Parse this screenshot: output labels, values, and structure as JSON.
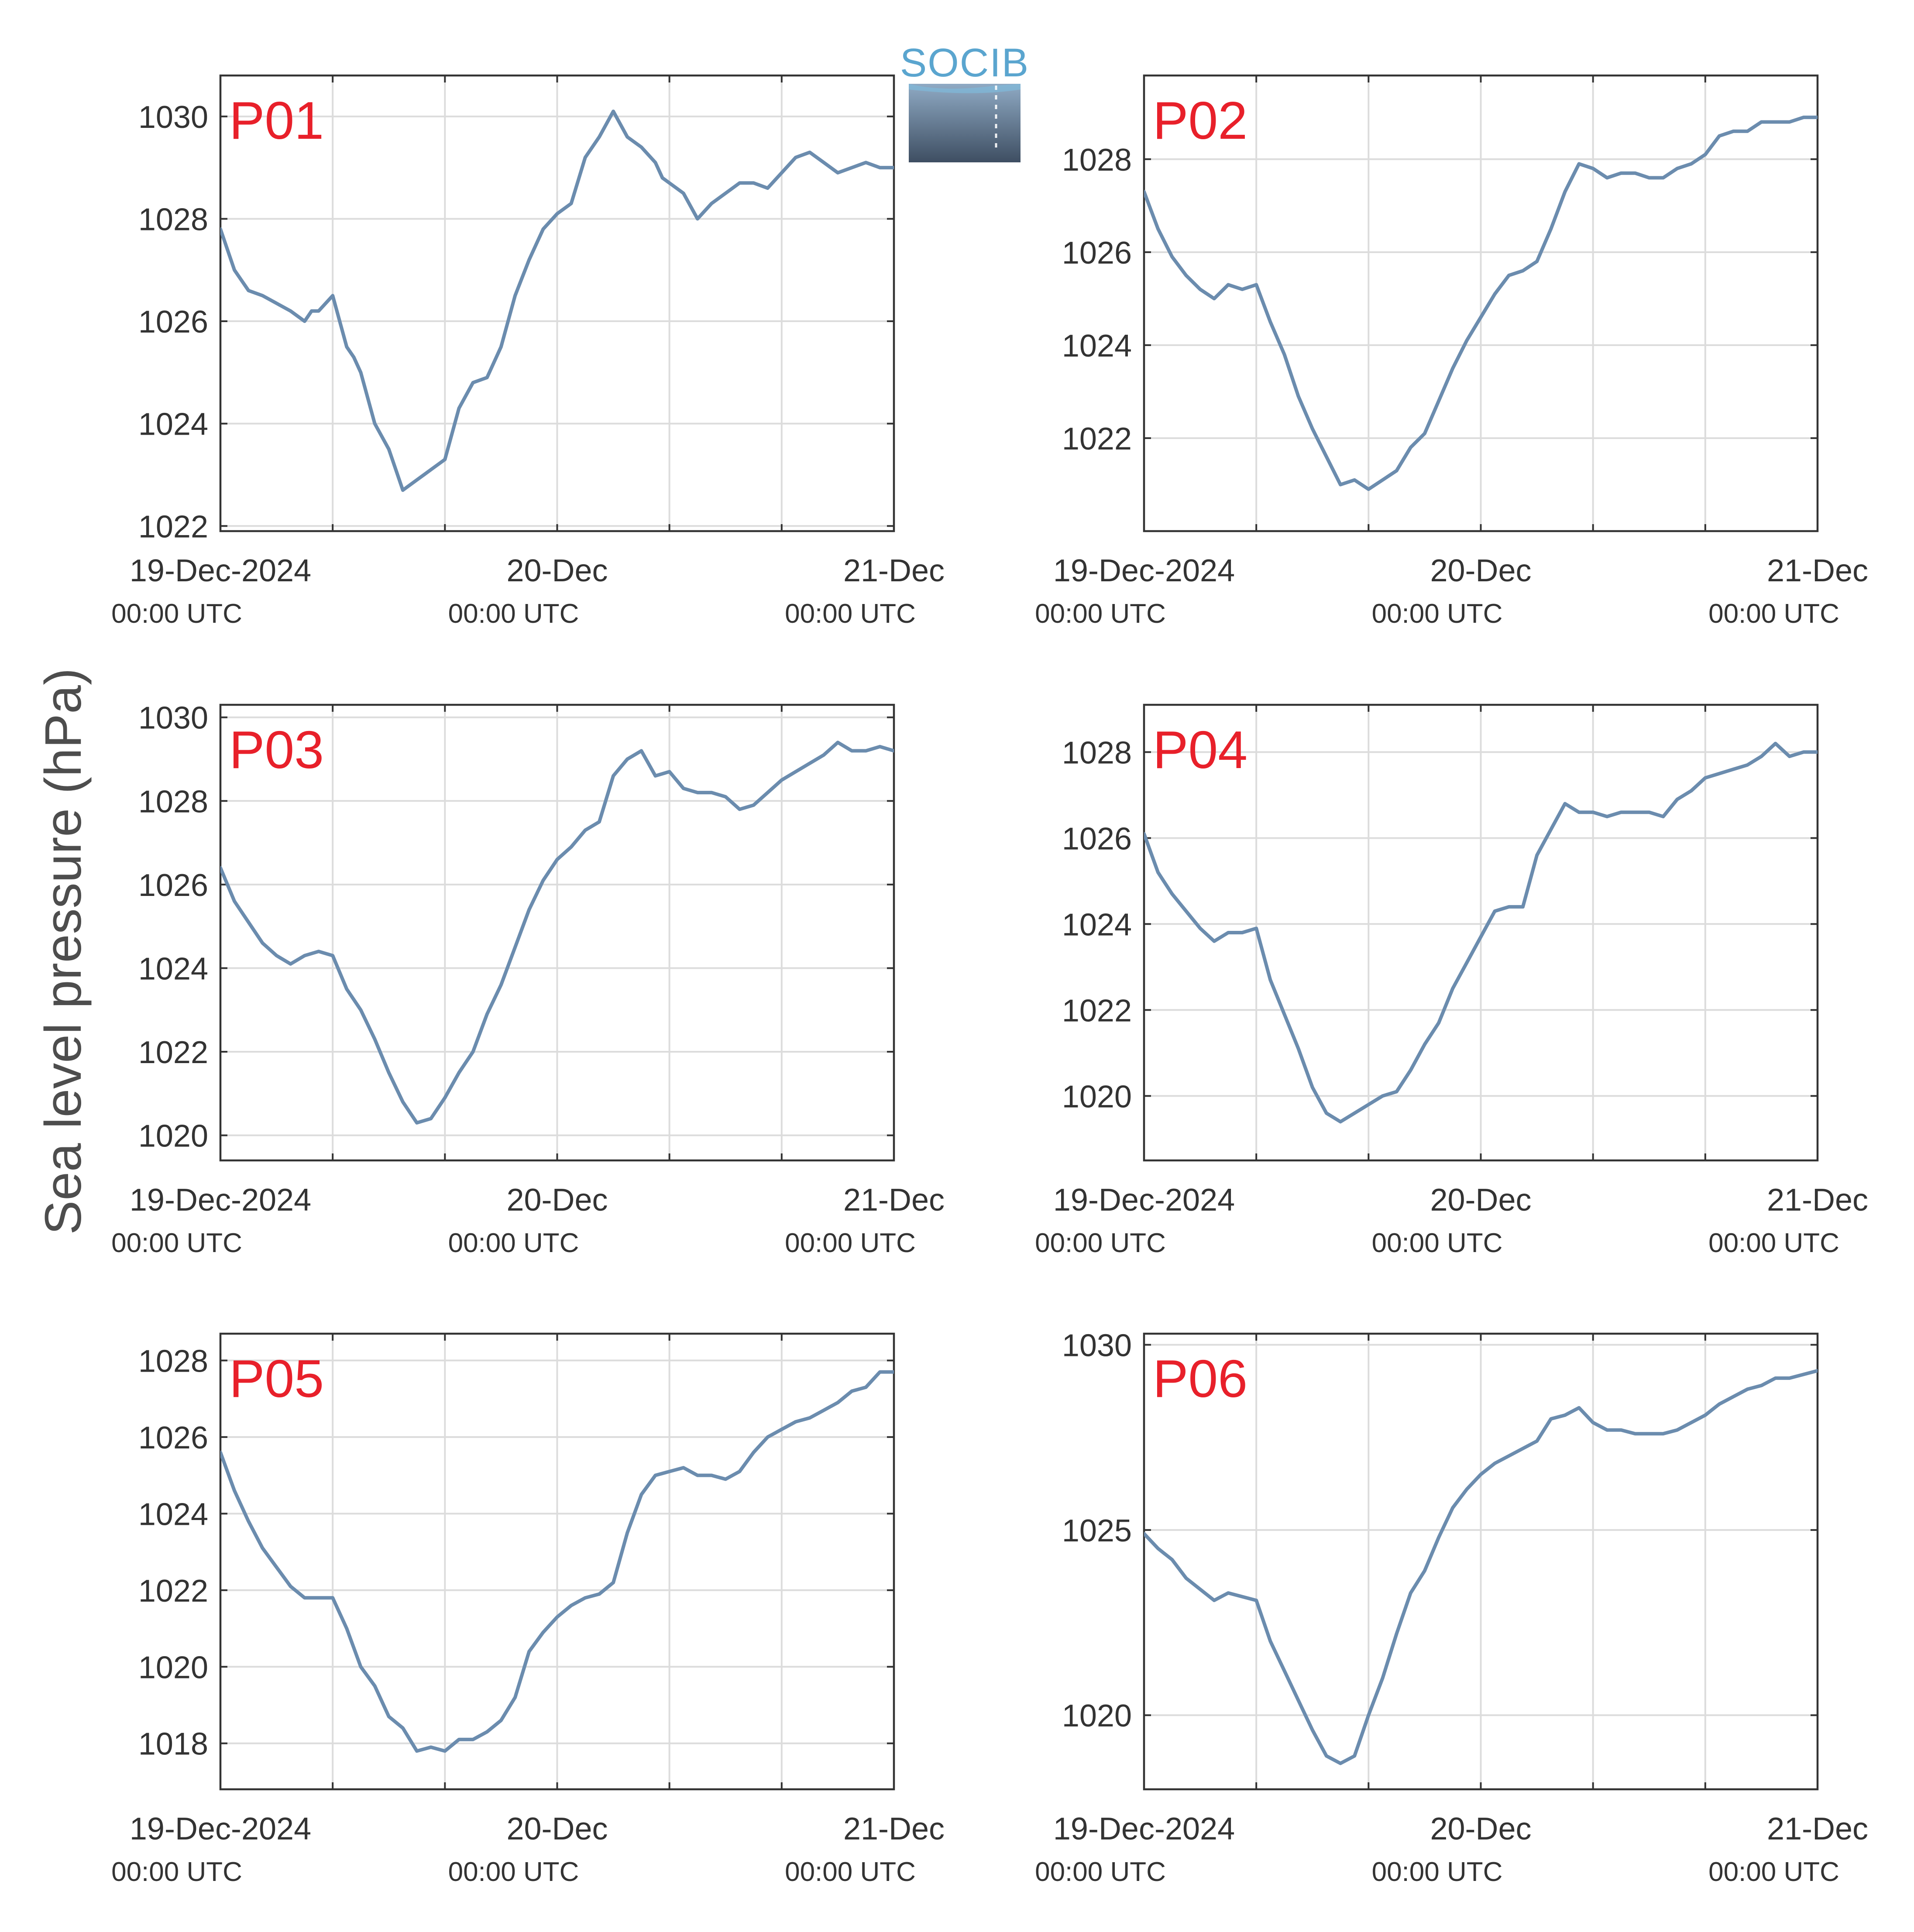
{
  "figure": {
    "ylabel": "Sea level pressure (hPa)",
    "logo_text": "SOCIB",
    "colors": {
      "line": "#6B8CAE",
      "panel_label": "#E8202A",
      "axis": "#333333",
      "grid": "#DCDCDC",
      "text": "#333333",
      "logo_text": "#5AA5CF",
      "logo_top": "#8FAAC4",
      "logo_bottom": "#3E4E62"
    }
  },
  "chart_data": [
    {
      "type": "line",
      "panel_label": "P01",
      "xlim": [
        0,
        48
      ],
      "ylim": [
        1021.9,
        1030.8
      ],
      "yticks": [
        1022,
        1024,
        1026,
        1028,
        1030
      ],
      "xticks": [
        {
          "hour": 0,
          "date": "19-Dec-2024",
          "time": "00:00 UTC"
        },
        {
          "hour": 24,
          "date": "20-Dec",
          "time": "00:00 UTC"
        },
        {
          "hour": 48,
          "date": "21-Dec",
          "time": "00:00 UTC"
        }
      ],
      "x": [
        0,
        1,
        2,
        3,
        5,
        6,
        6.5,
        7,
        8,
        9,
        9.5,
        10,
        11,
        12,
        13,
        14,
        14.5,
        15,
        16,
        17,
        18,
        19,
        20,
        21,
        22,
        22.5,
        23,
        24,
        25,
        26,
        27,
        28,
        29,
        30,
        31,
        31.5,
        32,
        33,
        34,
        35,
        36,
        37,
        38,
        39,
        40,
        41,
        42,
        43,
        44,
        45,
        46,
        47,
        48
      ],
      "values": [
        1027.8,
        1027.0,
        1026.6,
        1026.5,
        1026.2,
        1026.0,
        1026.2,
        1026.2,
        1026.5,
        1025.5,
        1025.3,
        1025.0,
        1024.0,
        1023.5,
        1022.7,
        1022.9,
        1023.0,
        1023.1,
        1023.3,
        1024.3,
        1024.8,
        1024.9,
        1025.5,
        1026.5,
        1027.2,
        1027.5,
        1027.8,
        1028.1,
        1028.3,
        1029.2,
        1029.6,
        1030.1,
        1029.6,
        1029.4,
        1029.1,
        1028.8,
        1028.7,
        1028.5,
        1028.0,
        1028.3,
        1028.5,
        1028.7,
        1028.7,
        1028.6,
        1028.9,
        1029.2,
        1029.3,
        1029.1,
        1028.9,
        1029.0,
        1029.1,
        1029.0,
        1029.0
      ]
    },
    {
      "type": "line",
      "panel_label": "P02",
      "xlim": [
        0,
        48
      ],
      "ylim": [
        1020.0,
        1029.8
      ],
      "yticks": [
        1022,
        1024,
        1026,
        1028
      ],
      "xticks": [
        {
          "hour": 0,
          "date": "19-Dec-2024",
          "time": "00:00 UTC"
        },
        {
          "hour": 24,
          "date": "20-Dec",
          "time": "00:00 UTC"
        },
        {
          "hour": 48,
          "date": "21-Dec",
          "time": "00:00 UTC"
        }
      ],
      "x": [
        0,
        1,
        2,
        3,
        4,
        5,
        6,
        7,
        8,
        9,
        10,
        11,
        12,
        13,
        14,
        15,
        16,
        17,
        18,
        19,
        20,
        21,
        22,
        23,
        24,
        25,
        26,
        27,
        28,
        29,
        30,
        31,
        32,
        33,
        34,
        35,
        36,
        37,
        38,
        39,
        40,
        41,
        42,
        43,
        44,
        45,
        46,
        47,
        48
      ],
      "values": [
        1027.3,
        1026.5,
        1025.9,
        1025.5,
        1025.2,
        1025.0,
        1025.3,
        1025.2,
        1025.3,
        1024.5,
        1023.8,
        1022.9,
        1022.2,
        1021.6,
        1021.0,
        1021.1,
        1020.9,
        1021.1,
        1021.3,
        1021.8,
        1022.1,
        1022.8,
        1023.5,
        1024.1,
        1024.6,
        1025.1,
        1025.5,
        1025.6,
        1025.8,
        1026.5,
        1027.3,
        1027.9,
        1027.8,
        1027.6,
        1027.7,
        1027.7,
        1027.6,
        1027.6,
        1027.8,
        1027.9,
        1028.1,
        1028.5,
        1028.6,
        1028.6,
        1028.8,
        1028.8,
        1028.8,
        1028.9,
        1028.9
      ]
    },
    {
      "type": "line",
      "panel_label": "P03",
      "xlim": [
        0,
        48
      ],
      "ylim": [
        1019.4,
        1030.3
      ],
      "yticks": [
        1020,
        1022,
        1024,
        1026,
        1028,
        1030
      ],
      "xticks": [
        {
          "hour": 0,
          "date": "19-Dec-2024",
          "time": "00:00 UTC"
        },
        {
          "hour": 24,
          "date": "20-Dec",
          "time": "00:00 UTC"
        },
        {
          "hour": 48,
          "date": "21-Dec",
          "time": "00:00 UTC"
        }
      ],
      "x": [
        0,
        1,
        2,
        3,
        4,
        5,
        6,
        7,
        8,
        9,
        10,
        11,
        12,
        13,
        14,
        15,
        16,
        17,
        18,
        19,
        20,
        21,
        22,
        23,
        24,
        25,
        26,
        27,
        28,
        29,
        30,
        31,
        32,
        33,
        34,
        35,
        36,
        37,
        38,
        39,
        40,
        41,
        42,
        43,
        44,
        45,
        46,
        47,
        48
      ],
      "values": [
        1026.4,
        1025.6,
        1025.1,
        1024.6,
        1024.3,
        1024.1,
        1024.3,
        1024.4,
        1024.3,
        1023.5,
        1023.0,
        1022.3,
        1021.5,
        1020.8,
        1020.3,
        1020.4,
        1020.9,
        1021.5,
        1022.0,
        1022.9,
        1023.6,
        1024.5,
        1025.4,
        1026.1,
        1026.6,
        1026.9,
        1027.3,
        1027.5,
        1028.6,
        1029.0,
        1029.2,
        1028.6,
        1028.7,
        1028.3,
        1028.2,
        1028.2,
        1028.1,
        1027.8,
        1027.9,
        1028.2,
        1028.5,
        1028.7,
        1028.9,
        1029.1,
        1029.4,
        1029.2,
        1029.2,
        1029.3,
        1029.2
      ]
    },
    {
      "type": "line",
      "panel_label": "P04",
      "xlim": [
        0,
        48
      ],
      "ylim": [
        1018.5,
        1029.1
      ],
      "yticks": [
        1020,
        1022,
        1024,
        1026,
        1028
      ],
      "xticks": [
        {
          "hour": 0,
          "date": "19-Dec-2024",
          "time": "00:00 UTC"
        },
        {
          "hour": 24,
          "date": "20-Dec",
          "time": "00:00 UTC"
        },
        {
          "hour": 48,
          "date": "21-Dec",
          "time": "00:00 UTC"
        }
      ],
      "x": [
        0,
        1,
        2,
        3,
        4,
        5,
        6,
        7,
        8,
        9,
        10,
        11,
        12,
        13,
        14,
        15,
        16,
        17,
        18,
        19,
        20,
        21,
        22,
        23,
        24,
        25,
        26,
        27,
        28,
        29,
        30,
        31,
        32,
        33,
        34,
        35,
        36,
        37,
        38,
        39,
        40,
        41,
        42,
        43,
        44,
        45,
        46,
        47,
        48
      ],
      "values": [
        1026.1,
        1025.2,
        1024.7,
        1024.3,
        1023.9,
        1023.6,
        1023.8,
        1023.8,
        1023.9,
        1022.7,
        1021.9,
        1021.1,
        1020.2,
        1019.6,
        1019.4,
        1019.6,
        1019.8,
        1020.0,
        1020.1,
        1020.6,
        1021.2,
        1021.7,
        1022.5,
        1023.1,
        1023.7,
        1024.3,
        1024.4,
        1024.4,
        1025.6,
        1026.2,
        1026.8,
        1026.6,
        1026.6,
        1026.5,
        1026.6,
        1026.6,
        1026.6,
        1026.5,
        1026.9,
        1027.1,
        1027.4,
        1027.5,
        1027.6,
        1027.7,
        1027.9,
        1028.2,
        1027.9,
        1028.0,
        1028.0
      ]
    },
    {
      "type": "line",
      "panel_label": "P05",
      "xlim": [
        0,
        48
      ],
      "ylim": [
        1016.8,
        1028.7
      ],
      "yticks": [
        1018,
        1020,
        1022,
        1024,
        1026,
        1028
      ],
      "xticks": [
        {
          "hour": 0,
          "date": "19-Dec-2024",
          "time": "00:00 UTC"
        },
        {
          "hour": 24,
          "date": "20-Dec",
          "time": "00:00 UTC"
        },
        {
          "hour": 48,
          "date": "21-Dec",
          "time": "00:00 UTC"
        }
      ],
      "x": [
        0,
        1,
        2,
        3,
        4,
        5,
        6,
        7,
        8,
        9,
        10,
        11,
        12,
        13,
        14,
        15,
        16,
        17,
        18,
        19,
        20,
        21,
        22,
        23,
        24,
        25,
        26,
        27,
        28,
        29,
        30,
        31,
        32,
        33,
        34,
        35,
        36,
        37,
        38,
        39,
        40,
        41,
        42,
        43,
        44,
        45,
        46,
        47,
        48
      ],
      "values": [
        1025.6,
        1024.6,
        1023.8,
        1023.1,
        1022.6,
        1022.1,
        1021.8,
        1021.8,
        1021.8,
        1021.0,
        1020.0,
        1019.5,
        1018.7,
        1018.4,
        1017.8,
        1017.9,
        1017.8,
        1018.1,
        1018.1,
        1018.3,
        1018.6,
        1019.2,
        1020.4,
        1020.9,
        1021.3,
        1021.6,
        1021.8,
        1021.9,
        1022.2,
        1023.5,
        1024.5,
        1025.0,
        1025.1,
        1025.2,
        1025.0,
        1025.0,
        1024.9,
        1025.1,
        1025.6,
        1026.0,
        1026.2,
        1026.4,
        1026.5,
        1026.7,
        1026.9,
        1027.2,
        1027.3,
        1027.7,
        1027.7
      ]
    },
    {
      "type": "line",
      "panel_label": "P06",
      "xlim": [
        0,
        48
      ],
      "ylim": [
        1018.0,
        1030.3
      ],
      "yticks": [
        1020,
        1025,
        1030
      ],
      "xticks": [
        {
          "hour": 0,
          "date": "19-Dec-2024",
          "time": "00:00 UTC"
        },
        {
          "hour": 24,
          "date": "20-Dec",
          "time": "00:00 UTC"
        },
        {
          "hour": 48,
          "date": "21-Dec",
          "time": "00:00 UTC"
        }
      ],
      "x": [
        0,
        1,
        2,
        3,
        4,
        5,
        6,
        7,
        8,
        9,
        10,
        11,
        12,
        13,
        14,
        15,
        16,
        17,
        18,
        19,
        20,
        21,
        22,
        23,
        24,
        25,
        26,
        27,
        28,
        29,
        30,
        31,
        32,
        33,
        34,
        35,
        36,
        37,
        38,
        39,
        40,
        41,
        42,
        43,
        44,
        45,
        46,
        47,
        48
      ],
      "values": [
        1024.9,
        1024.5,
        1024.2,
        1023.7,
        1023.4,
        1023.1,
        1023.3,
        1023.2,
        1023.1,
        1022.0,
        1021.2,
        1020.4,
        1019.6,
        1018.9,
        1018.7,
        1018.9,
        1020.0,
        1021.0,
        1022.2,
        1023.3,
        1023.9,
        1024.8,
        1025.6,
        1026.1,
        1026.5,
        1026.8,
        1027.0,
        1027.2,
        1027.4,
        1028.0,
        1028.1,
        1028.3,
        1027.9,
        1027.7,
        1027.7,
        1027.6,
        1027.6,
        1027.6,
        1027.7,
        1027.9,
        1028.1,
        1028.4,
        1028.6,
        1028.8,
        1028.9,
        1029.1,
        1029.1,
        1029.2,
        1029.3
      ]
    }
  ]
}
